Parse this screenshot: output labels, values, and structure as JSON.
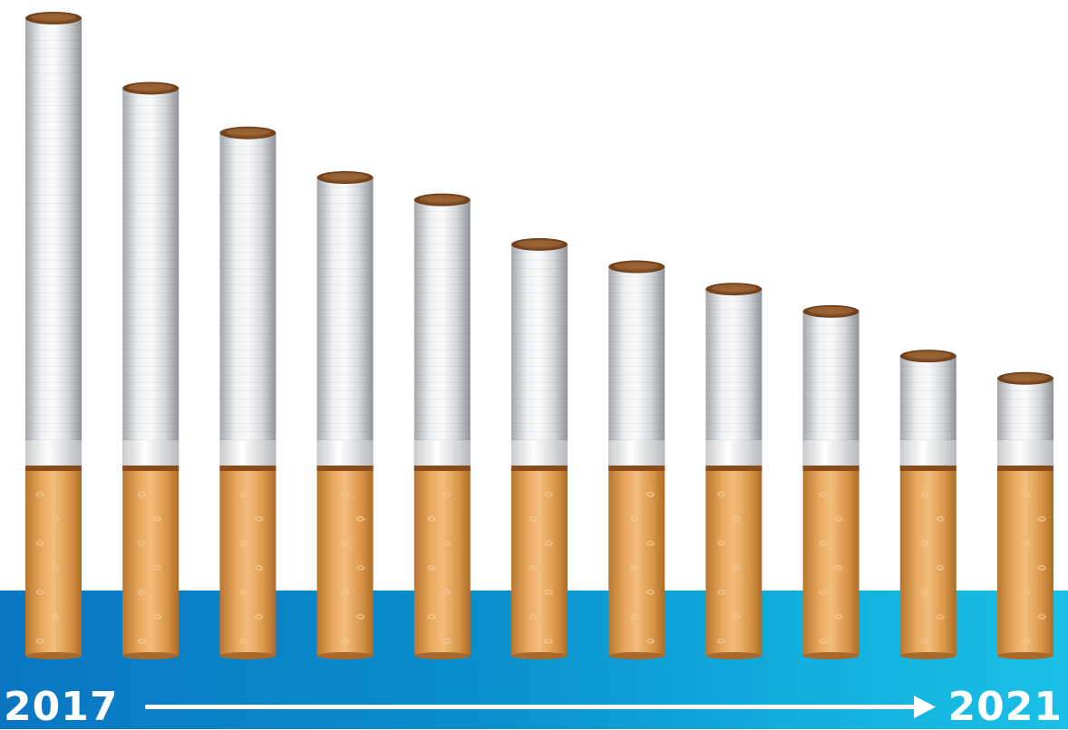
{
  "chart_data": {
    "type": "bar",
    "title": "",
    "xlabel": "",
    "ylabel": "",
    "categories": [
      "",
      "",
      "",
      "",
      "",
      "",
      "",
      "",
      "",
      "",
      ""
    ],
    "values": [
      100,
      89,
      82,
      75,
      71.5,
      64.5,
      61,
      57.5,
      54,
      47,
      43.5
    ],
    "ylim": [
      0,
      100
    ],
    "grid": false,
    "start_label": "2017",
    "end_label": "2021"
  },
  "colors": {
    "band_left": "#0a76c2",
    "band_right": "#1bc0e6",
    "paper_light": "#f4f5f6",
    "paper_dark": "#9da2a6",
    "filter_light": "#f0b877",
    "filter_dark": "#c6843c",
    "tobacco": "#8a5326",
    "arrow": "#ffffff"
  }
}
